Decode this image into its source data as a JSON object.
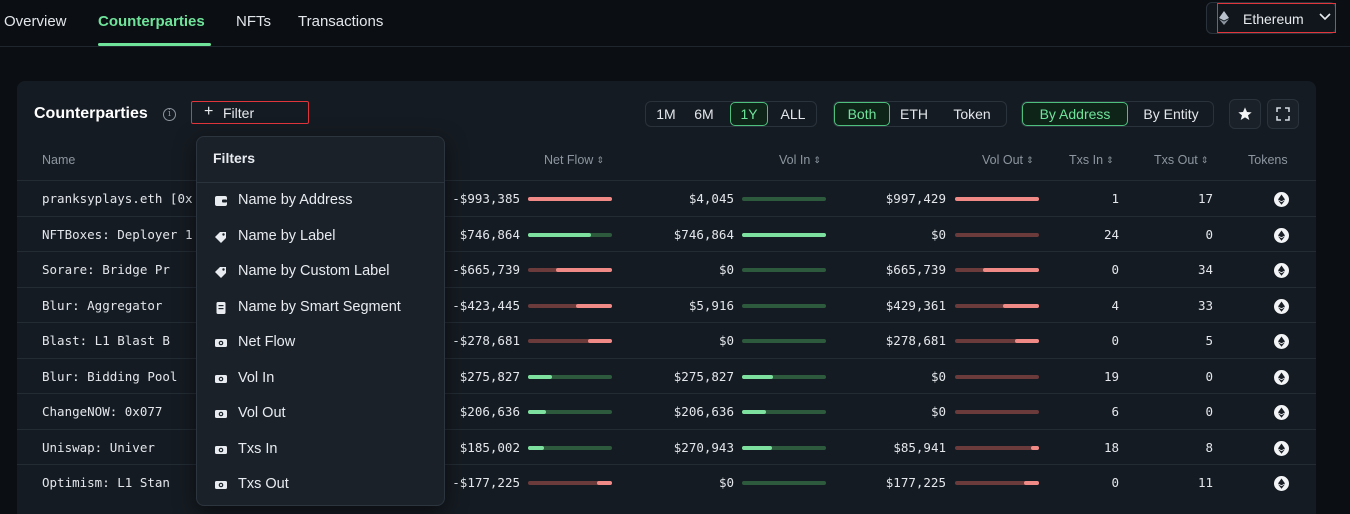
{
  "nav": {
    "tabs": [
      {
        "label": "Overview"
      },
      {
        "label": "Counterparties"
      },
      {
        "label": "NFTs"
      },
      {
        "label": "Transactions"
      }
    ],
    "chain": "Ethereum"
  },
  "card": {
    "title": "Counterparties",
    "filter_label": "Filter",
    "time_ranges": [
      "1M",
      "6M",
      "1Y",
      "ALL"
    ],
    "selected_range": "1Y",
    "asset_types": [
      "Both",
      "ETH",
      "Token"
    ],
    "selected_asset": "Both",
    "group_by": [
      "By Address",
      "By Entity"
    ],
    "selected_group": "By Address"
  },
  "table": {
    "headers": {
      "name": "Name",
      "net_flow": "Net Flow",
      "vol_in": "Vol In",
      "vol_out": "Vol Out",
      "txs_in": "Txs In",
      "txs_out": "Txs Out",
      "tokens": "Tokens"
    },
    "rows": [
      {
        "name": "pranksyplays.eth [0x",
        "net_flow": "-$993,385",
        "vol_in": "$4,045",
        "vol_out": "$997,429",
        "txs_in": "1",
        "txs_out": "17",
        "net_ratio": -1.0,
        "vin_ratio": 0.0,
        "vout_ratio": 1.0
      },
      {
        "name": "NFTBoxes: Deployer 1",
        "net_flow": "$746,864",
        "vol_in": "$746,864",
        "vol_out": "$0",
        "txs_in": "24",
        "txs_out": "0",
        "net_ratio": 0.75,
        "vin_ratio": 1.0,
        "vout_ratio": 0.0
      },
      {
        "name": "Sorare: Bridge Pr",
        "net_flow": "-$665,739",
        "vol_in": "$0",
        "vol_out": "$665,739",
        "txs_in": "0",
        "txs_out": "34",
        "net_ratio": -0.67,
        "vin_ratio": 0.0,
        "vout_ratio": 0.67
      },
      {
        "name": "Blur: Aggregator",
        "net_flow": "-$423,445",
        "vol_in": "$5,916",
        "vol_out": "$429,361",
        "txs_in": "4",
        "txs_out": "33",
        "net_ratio": -0.43,
        "vin_ratio": 0.0,
        "vout_ratio": 0.43
      },
      {
        "name": "Blast: L1 Blast B",
        "net_flow": "-$278,681",
        "vol_in": "$0",
        "vol_out": "$278,681",
        "txs_in": "0",
        "txs_out": "5",
        "net_ratio": -0.28,
        "vin_ratio": 0.0,
        "vout_ratio": 0.28
      },
      {
        "name": "Blur: Bidding Pool",
        "net_flow": "$275,827",
        "vol_in": "$275,827",
        "vol_out": "$0",
        "txs_in": "19",
        "txs_out": "0",
        "net_ratio": 0.28,
        "vin_ratio": 0.37,
        "vout_ratio": 0.0
      },
      {
        "name": "ChangeNOW: 0x077",
        "net_flow": "$206,636",
        "vol_in": "$206,636",
        "vol_out": "$0",
        "txs_in": "6",
        "txs_out": "0",
        "net_ratio": 0.21,
        "vin_ratio": 0.28,
        "vout_ratio": 0.0
      },
      {
        "name": "Uniswap: Univer",
        "net_flow": "$185,002",
        "vol_in": "$270,943",
        "vol_out": "$85,941",
        "txs_in": "18",
        "txs_out": "8",
        "net_ratio": 0.19,
        "vin_ratio": 0.36,
        "vout_ratio": 0.09
      },
      {
        "name": "Optimism: L1 Stan",
        "net_flow": "-$177,225",
        "vol_in": "$0",
        "vol_out": "$177,225",
        "txs_in": "0",
        "txs_out": "11",
        "net_ratio": -0.18,
        "vin_ratio": 0.0,
        "vout_ratio": 0.18
      }
    ]
  },
  "filters": {
    "heading": "Filters",
    "items": [
      {
        "label": "Name by Address",
        "icon": "wallet-icon"
      },
      {
        "label": "Name by Label",
        "icon": "tag-icon"
      },
      {
        "label": "Name by Custom Label",
        "icon": "tag-icon"
      },
      {
        "label": "Name by Smart Segment",
        "icon": "document-icon"
      },
      {
        "label": "Net Flow",
        "icon": "money-icon"
      },
      {
        "label": "Vol In",
        "icon": "money-icon"
      },
      {
        "label": "Vol Out",
        "icon": "money-icon"
      },
      {
        "label": "Txs In",
        "icon": "money-icon"
      },
      {
        "label": "Txs Out",
        "icon": "money-icon"
      }
    ]
  },
  "colors": {
    "accent": "#6fe39a",
    "negative": "#f08a86",
    "positive": "#7ee09e",
    "highlight": "#e0353b"
  }
}
